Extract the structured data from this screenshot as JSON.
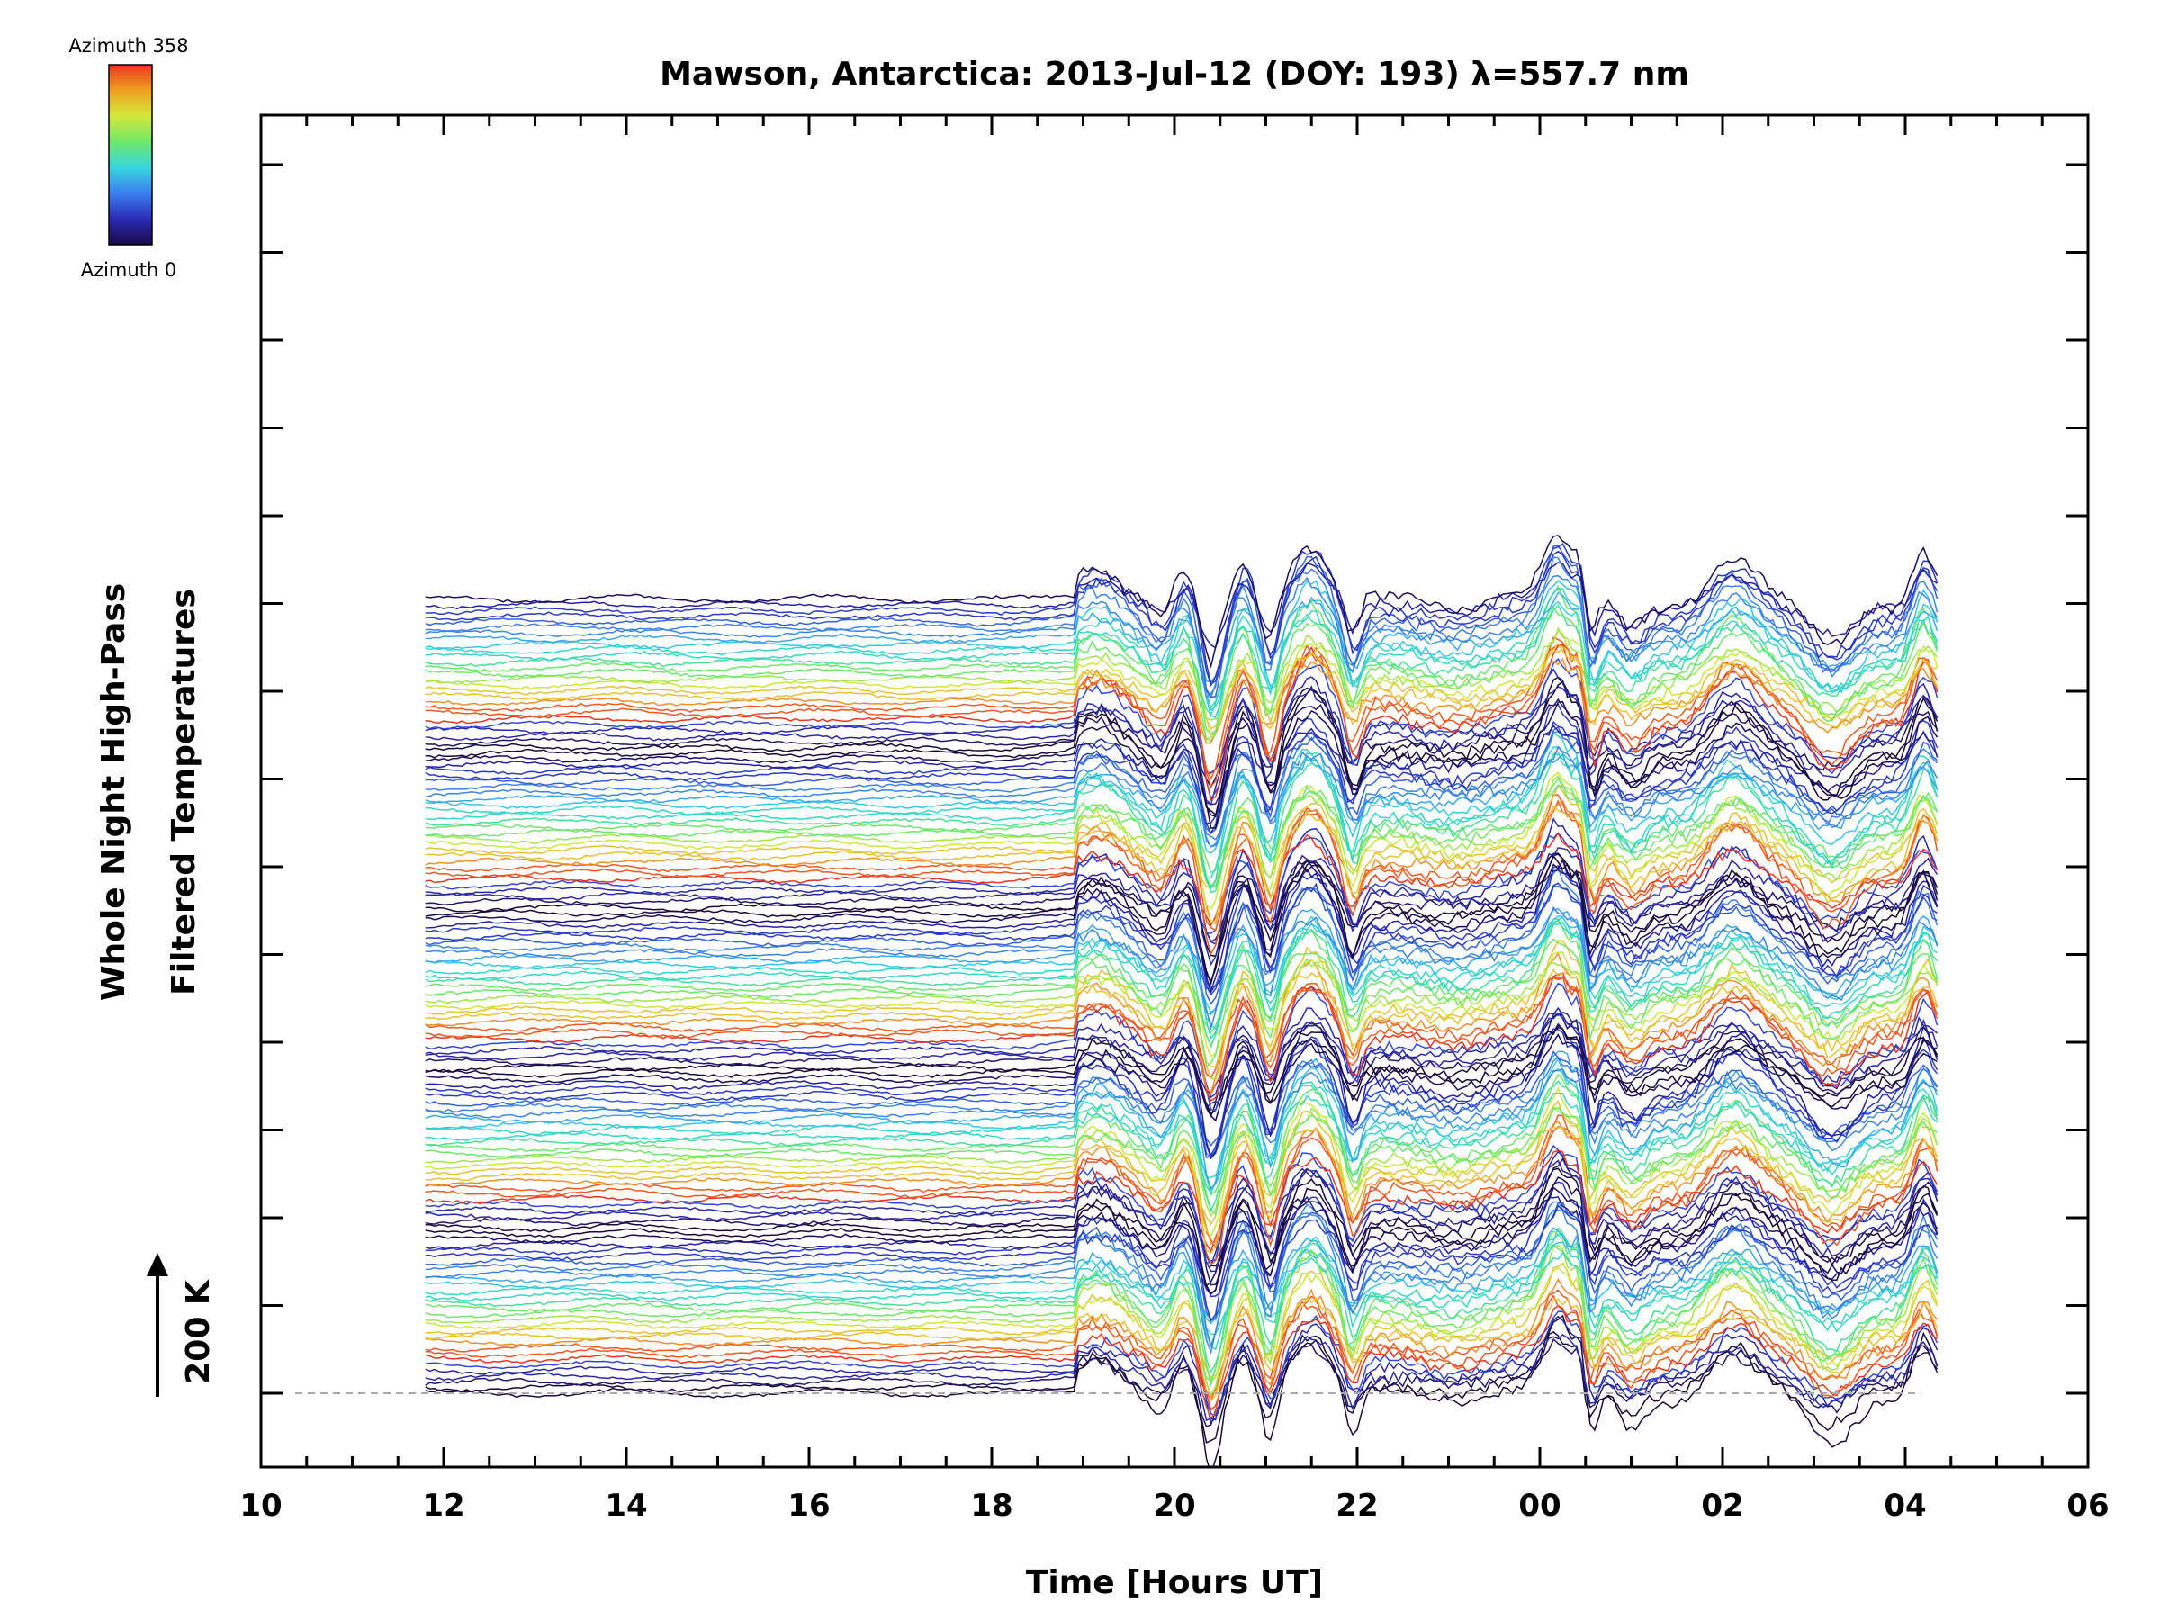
{
  "chart_data": {
    "type": "line",
    "title": "Mawson, Antarctica: 2013-Jul-12 (DOY: 193) λ=557.7 nm",
    "xlabel": "Time [Hours UT]",
    "ylabel_line1": "Whole Night High-Pass",
    "ylabel_line2": "Filtered Temperatures",
    "x_tick_labels": [
      "10",
      "12",
      "14",
      "16",
      "18",
      "20",
      "22",
      "00",
      "02",
      "04",
      "06"
    ],
    "x_ticks_hours": [
      10,
      12,
      14,
      16,
      18,
      20,
      22,
      24,
      26,
      28,
      30
    ],
    "xlim": [
      10,
      30
    ],
    "data_start_hour": 11.8,
    "data_end_hour": 28.35,
    "scale_bar": {
      "label": "200 K",
      "value_K": 200
    },
    "colorbar": {
      "top_label": "Azimuth 358",
      "bottom_label": "Azimuth 0",
      "range": [
        0,
        358
      ],
      "colormap": [
        "#1a0a4a",
        "#2a2ab4",
        "#3c7ff0",
        "#36d6e0",
        "#6ee86a",
        "#d4e83a",
        "#f0a020",
        "#e83a1e"
      ]
    },
    "series_count": 140,
    "grid": false,
    "baseline_dashed": true,
    "colors": {
      "axis": "#000000",
      "background": "#ffffff",
      "baseline": "#aaaaaa"
    }
  }
}
